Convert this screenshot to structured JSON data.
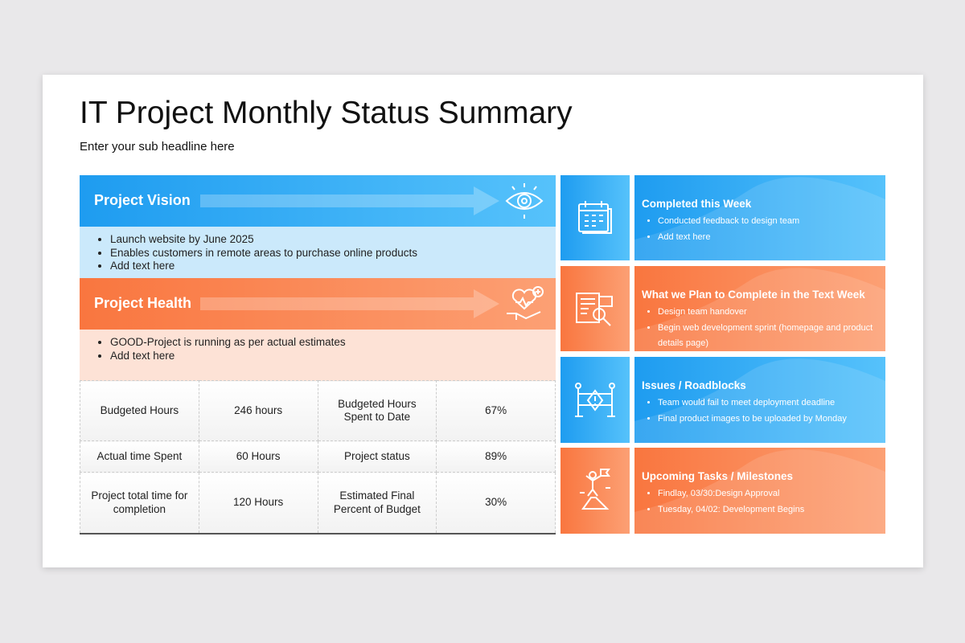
{
  "title": "IT Project Monthly Status Summary",
  "subtitle": "Enter your sub headline here",
  "vision": {
    "title": "Project Vision",
    "items": [
      "Launch website by June 2025",
      "Enables customers in remote areas to purchase online products",
      "Add text here"
    ]
  },
  "health": {
    "title": "Project Health",
    "items": [
      "GOOD-Project is running as per actual estimates",
      "Add text here"
    ]
  },
  "table": {
    "rows": [
      [
        "Budgeted Hours",
        "246 hours",
        "Budgeted Hours Spent to Date",
        "67%"
      ],
      [
        "Actual time Spent",
        "60 Hours",
        "Project status",
        "89%"
      ],
      [
        "Project total time for completion",
        "120 Hours",
        "Estimated Final Percent of Budget",
        "30%"
      ]
    ]
  },
  "panels": [
    {
      "title": "Completed this Week",
      "items": [
        "Conducted feedback to design team",
        "Add text here"
      ]
    },
    {
      "title": "What we Plan to Complete in the Text Week",
      "items": [
        "Design team handover",
        "Begin web development sprint (homepage and product details page)"
      ]
    },
    {
      "title": "Issues / Roadblocks",
      "items": [
        "Team would fail to meet deployment deadline",
        "Final product images to be uploaded by Monday"
      ]
    },
    {
      "title": "Upcoming Tasks / Milestones",
      "items": [
        "Findlay, 03/30:Design Approval",
        "Tuesday, 04/02: Development Begins"
      ]
    }
  ]
}
